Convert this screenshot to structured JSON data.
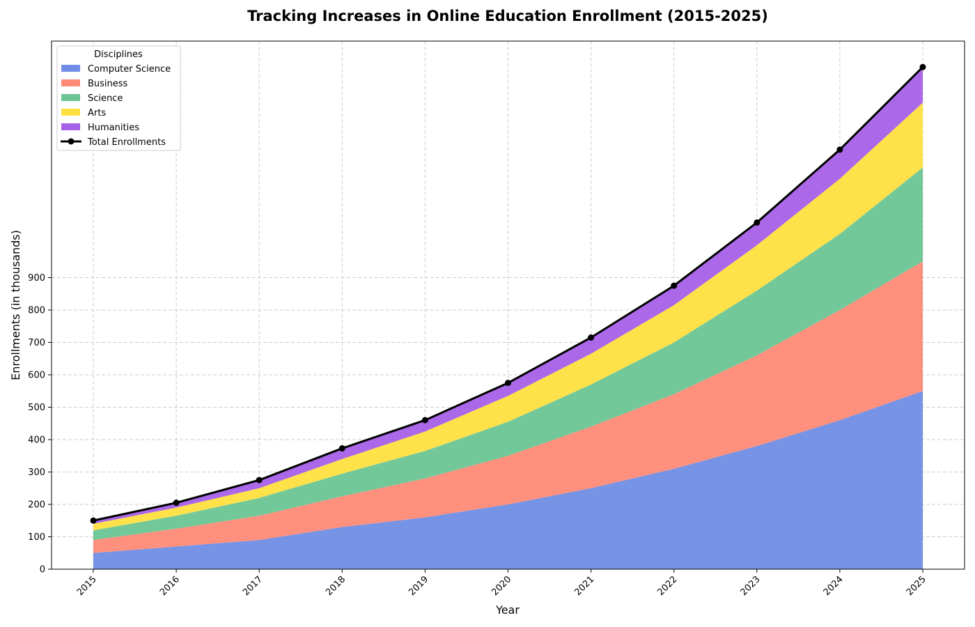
{
  "chart_data": {
    "type": "area",
    "title": "Tracking Increases in Online Education Enrollment (2015-2025)",
    "xlabel": "Year",
    "ylabel": "Enrollments (in thousands)",
    "categories": [
      "2015",
      "2016",
      "2017",
      "2018",
      "2019",
      "2020",
      "2021",
      "2022",
      "2023",
      "2024",
      "2025"
    ],
    "series": [
      {
        "name": "Computer Science",
        "color": "#6f8de5",
        "values": [
          50,
          70,
          90,
          130,
          160,
          200,
          250,
          310,
          380,
          460,
          550
        ]
      },
      {
        "name": "Business",
        "color": "#ff8a76",
        "values": [
          40,
          55,
          75,
          95,
          120,
          150,
          190,
          230,
          280,
          340,
          400
        ]
      },
      {
        "name": "Science",
        "color": "#6cc594",
        "values": [
          30,
          40,
          55,
          70,
          85,
          105,
          130,
          160,
          200,
          235,
          290
        ]
      },
      {
        "name": "Arts",
        "color": "#ffdf40",
        "values": [
          20,
          25,
          30,
          45,
          60,
          80,
          95,
          115,
          140,
          170,
          200
        ]
      },
      {
        "name": "Humanities",
        "color": "#a660e8",
        "values": [
          10,
          15,
          25,
          33,
          35,
          40,
          50,
          60,
          70,
          90,
          110
        ]
      }
    ],
    "total": {
      "name": "Total Enrollments",
      "color": "#000000",
      "values": [
        150,
        205,
        275,
        373,
        460,
        575,
        715,
        875,
        1070,
        1295,
        1550
      ]
    },
    "yticks": [
      0,
      100,
      200,
      300,
      400,
      500,
      600,
      700,
      800,
      900
    ],
    "ylim": [
      0,
      1630
    ],
    "grid": true,
    "legend": {
      "title": "Disciplines",
      "position": "top-left"
    }
  }
}
